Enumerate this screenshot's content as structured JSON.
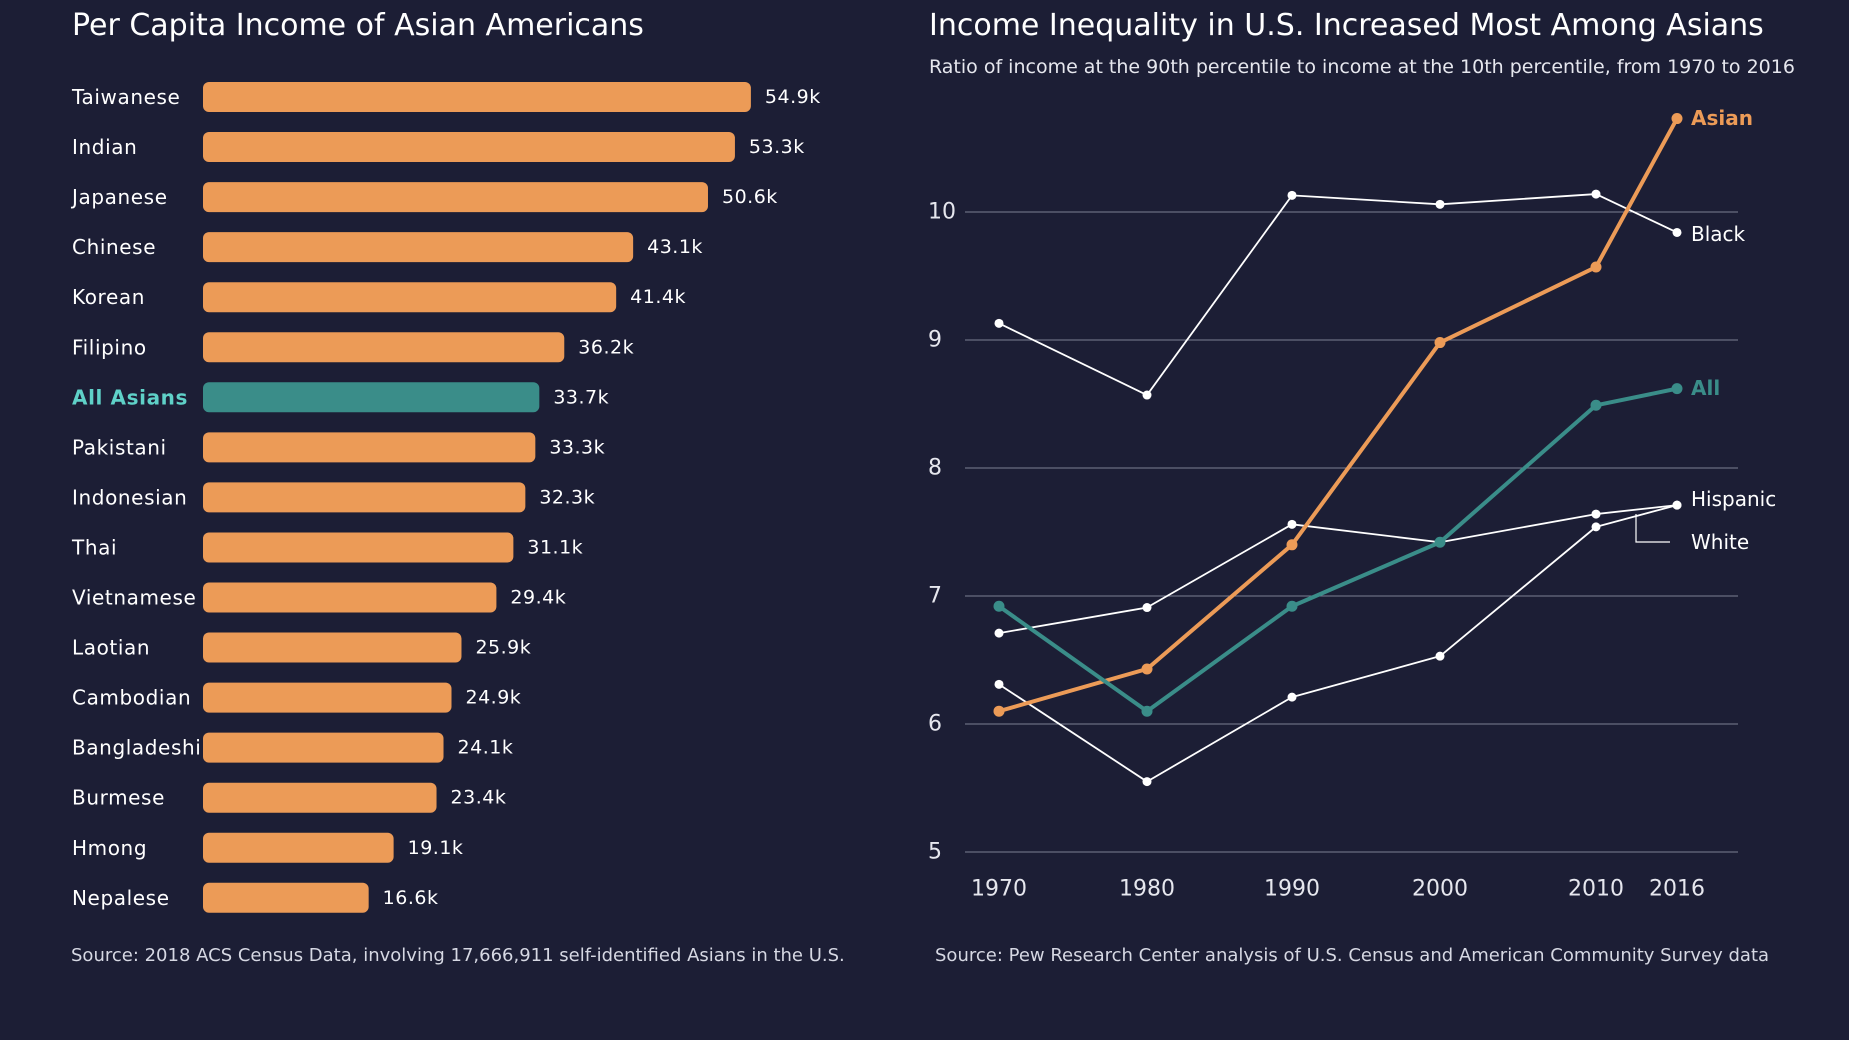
{
  "colors": {
    "background": "#1c1e35",
    "bar": "#ec9b57",
    "highlight": "#3a8d89",
    "highlight_label": "#5fd1c8",
    "asian_line": "#ec9b57",
    "all_line": "#3a8d89",
    "other_line": "#ffffff",
    "grid": "#7d8094",
    "text": "#ffffff"
  },
  "chart_data": [
    {
      "type": "bar",
      "orientation": "horizontal",
      "title": "Per Capita Income of Asian Americans",
      "categories": [
        "Taiwanese",
        "Indian",
        "Japanese",
        "Chinese",
        "Korean",
        "Filipino",
        "All Asians",
        "Pakistani",
        "Indonesian",
        "Thai",
        "Vietnamese",
        "Laotian",
        "Cambodian",
        "Bangladeshi",
        "Burmese",
        "Hmong",
        "Nepalese"
      ],
      "values": [
        54.9,
        53.3,
        50.6,
        43.1,
        41.4,
        36.2,
        33.7,
        33.3,
        32.3,
        31.1,
        29.4,
        25.9,
        24.9,
        24.1,
        23.4,
        19.1,
        16.6
      ],
      "value_labels": [
        "54.9k",
        "53.3k",
        "50.6k",
        "43.1k",
        "41.4k",
        "36.2k",
        "33.7k",
        "33.3k",
        "32.3k",
        "31.1k",
        "29.4k",
        "25.9k",
        "24.9k",
        "24.1k",
        "23.4k",
        "19.1k",
        "16.6k"
      ],
      "highlight": "All Asians",
      "xlim": [
        0,
        55
      ],
      "grid": false,
      "source": "Source: 2018 ACS Census Data, involving 17,666,911 self-identified Asians in the U.S."
    },
    {
      "type": "line",
      "title": "Income Inequality in U.S. Increased Most Among Asians",
      "subtitle": "Ratio of income at the 90th percentile to income at the 10th percentile, from 1970 to 2016",
      "x": [
        1970,
        1980,
        1990,
        2000,
        2010,
        2016
      ],
      "x_tick_labels": [
        "1970",
        "1980",
        "1990",
        "2000",
        "2010",
        "2016"
      ],
      "y_ticks": [
        5,
        6,
        7,
        8,
        9,
        10
      ],
      "y_tick_labels": [
        "5",
        "6",
        "7",
        "8",
        "9",
        "10"
      ],
      "ylim": [
        5,
        10.8
      ],
      "grid": true,
      "series": [
        {
          "name": "Asian",
          "values": [
            6.1,
            6.43,
            7.4,
            8.98,
            9.57,
            10.73
          ],
          "color": "#ec9b57",
          "emphasis": true
        },
        {
          "name": "Black",
          "values": [
            9.13,
            8.57,
            10.13,
            10.06,
            10.14,
            9.84
          ],
          "color": "#ffffff",
          "emphasis": false
        },
        {
          "name": "All",
          "values": [
            6.92,
            6.1,
            6.92,
            7.42,
            8.49,
            8.62
          ],
          "color": "#3a8d89",
          "emphasis": true
        },
        {
          "name": "Hispanic",
          "values": [
            6.71,
            6.91,
            7.56,
            7.42,
            7.64,
            7.71
          ],
          "color": "#ffffff",
          "emphasis": false
        },
        {
          "name": "White",
          "values": [
            6.31,
            5.55,
            6.21,
            6.53,
            7.54,
            7.71
          ],
          "color": "#ffffff",
          "emphasis": false
        }
      ],
      "source": "Source: Pew Research Center analysis of U.S. Census and American Community Survey data"
    }
  ]
}
